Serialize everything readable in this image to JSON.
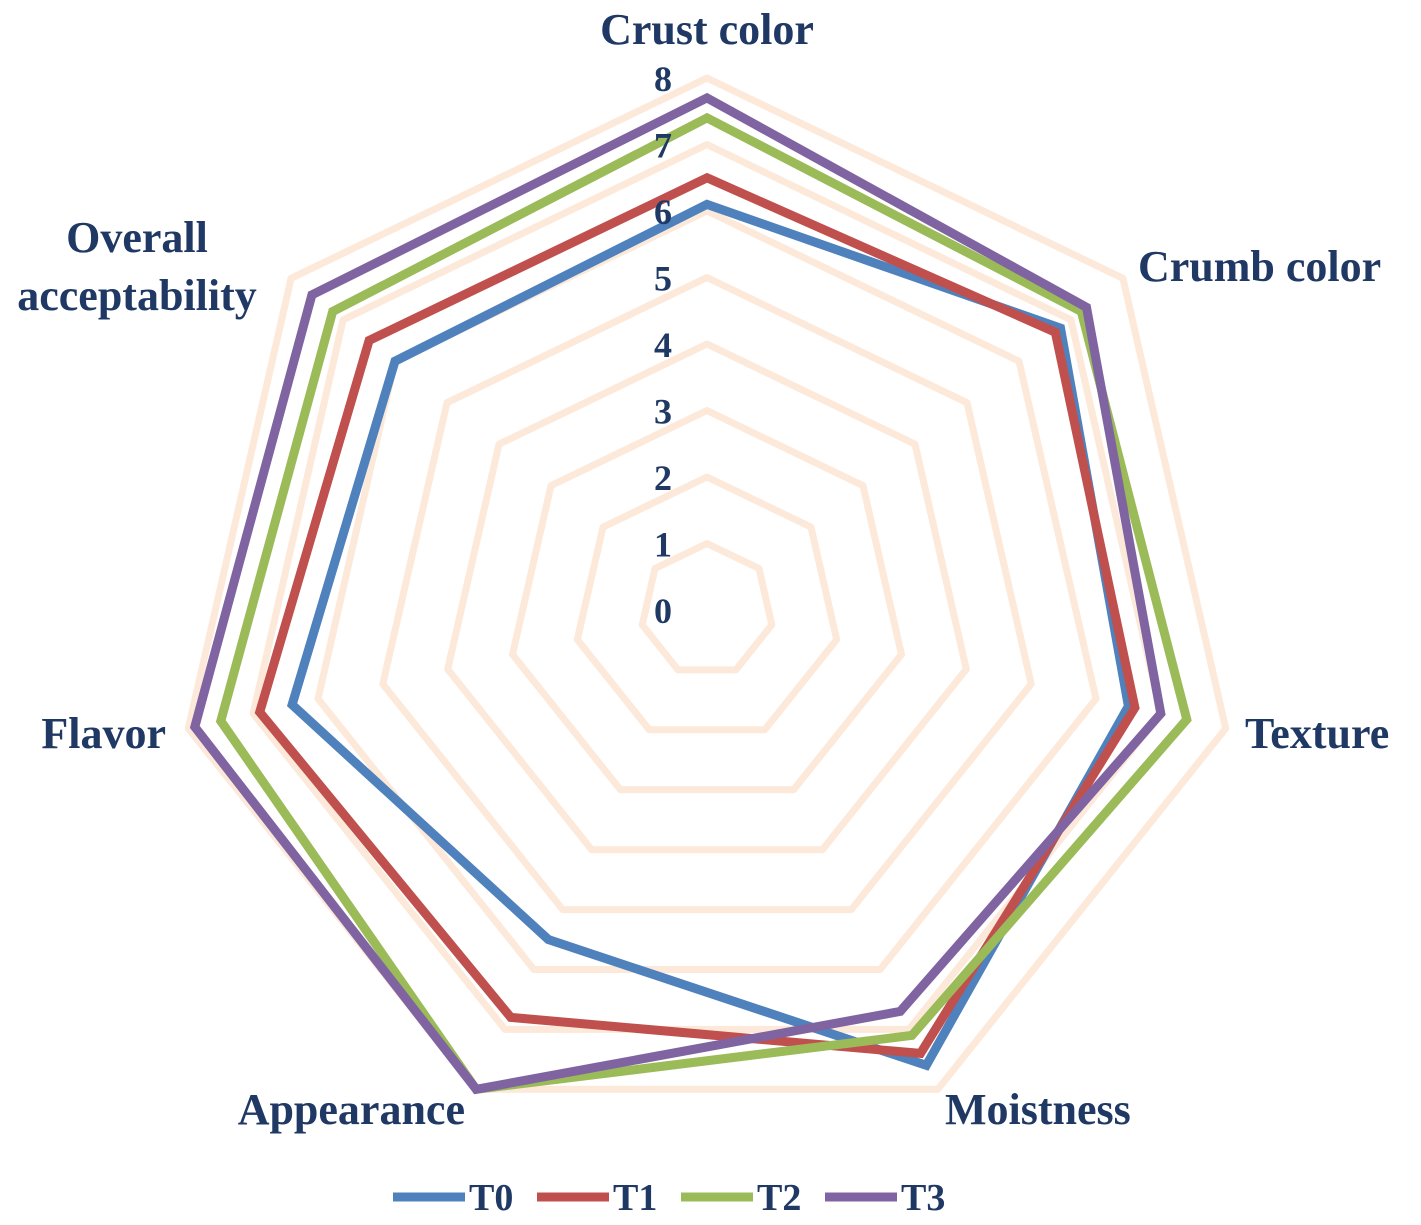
{
  "chart_data": {
    "type": "radar",
    "categories": [
      "Crust color",
      "Crumb color",
      "Texture",
      "Moistness",
      "Appearance",
      "Flavor",
      "Overall acceptability"
    ],
    "axis_ticks": [
      "0",
      "1",
      "2",
      "3",
      "4",
      "5",
      "6",
      "7",
      "8"
    ],
    "range": [
      0,
      8
    ],
    "series": [
      {
        "name": "T0",
        "color": "#4f81bd",
        "values": [
          6.1,
          6.8,
          6.5,
          7.6,
          5.5,
          6.4,
          6.0
        ]
      },
      {
        "name": "T1",
        "color": "#c0504d",
        "values": [
          6.5,
          6.7,
          6.6,
          7.4,
          6.8,
          6.9,
          6.5
        ]
      },
      {
        "name": "T2",
        "color": "#9bbb59",
        "values": [
          7.4,
          7.2,
          7.4,
          7.1,
          8.0,
          7.5,
          7.2
        ]
      },
      {
        "name": "T3",
        "color": "#8064a2",
        "values": [
          7.7,
          7.3,
          7.0,
          6.7,
          8.0,
          7.9,
          7.6
        ]
      }
    ],
    "grid_color": "#fde9d9",
    "label_color": "#1f3864",
    "legend_position": "bottom"
  }
}
